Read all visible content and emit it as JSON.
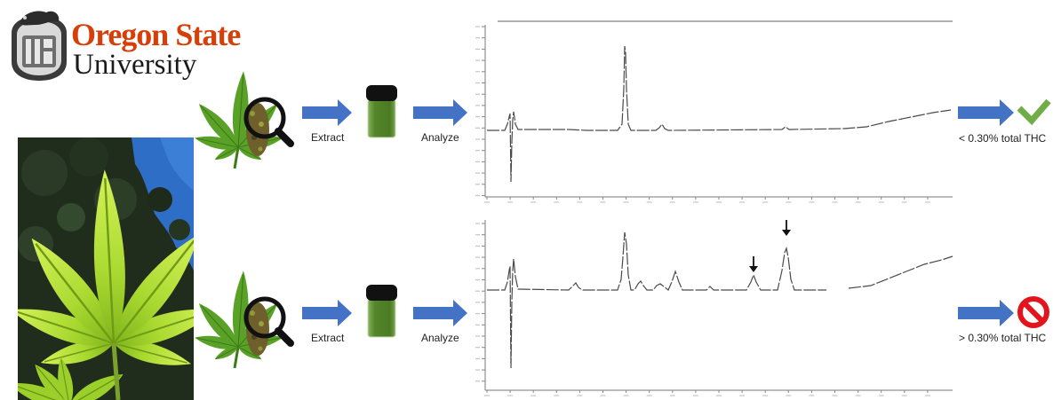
{
  "logo": {
    "line1": "Oregon State",
    "line2": "University",
    "seal_icon": "osu-seal-icon"
  },
  "workflow": [
    {
      "extract_label": "Extract",
      "analyze_label": "Analyze",
      "result_label": "< 0.30% total THC",
      "result_icon": "check-icon"
    },
    {
      "extract_label": "Extract",
      "analyze_label": "Analyze",
      "result_label": "> 0.30% total THC",
      "result_icon": "prohibited-icon"
    }
  ],
  "icons": {
    "sample": "cannabis-leaf-magnifier-icon",
    "extract": "vial-icon",
    "arrow": "arrow-right-icon",
    "photo": "cannabis-leaf-photo",
    "peak_marker": "arrow-down-icon"
  },
  "colors": {
    "brand": "#D73F09",
    "arrow": "#4472C4",
    "pass": "#70AD47",
    "fail": "#E3141B",
    "extract_liquid": "#54862A",
    "trace": "#4A4A4A"
  }
}
